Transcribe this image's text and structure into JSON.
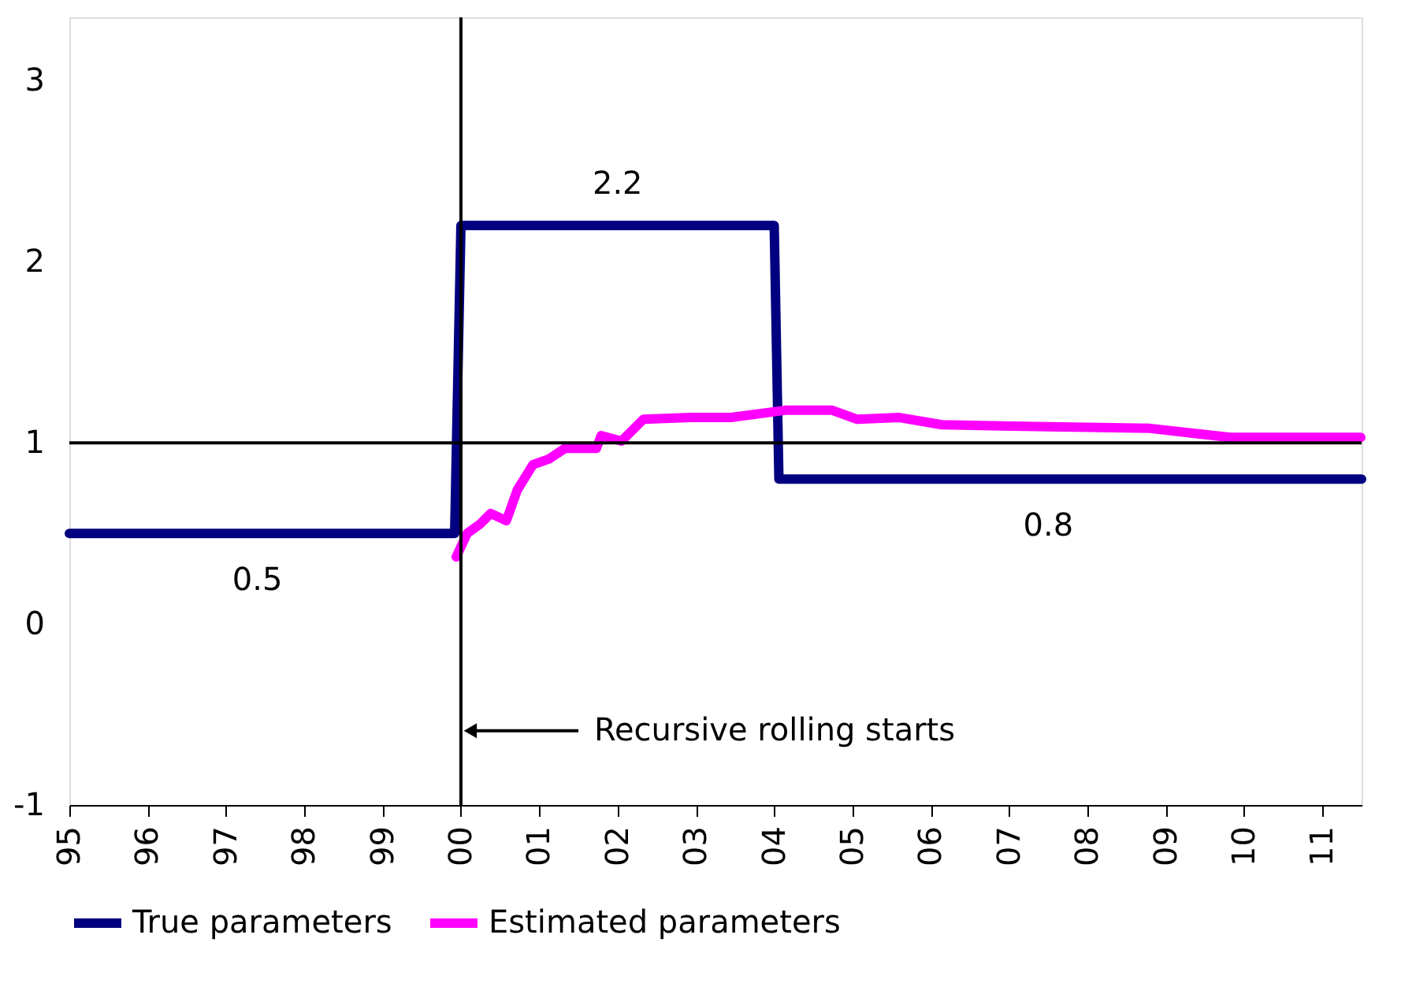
{
  "chart_data": {
    "type": "line",
    "series": [
      {
        "name": "True parameters",
        "color": "#000080",
        "x": [
          1995,
          1999.92,
          2000.0,
          2004.0,
          2004.06,
          2011.5
        ],
        "values": [
          0.5,
          0.5,
          2.2,
          2.2,
          0.8,
          0.8
        ]
      },
      {
        "name": "Estimated parameters",
        "color": "#ff00ff",
        "x": [
          1999.94,
          2000.08,
          2000.24,
          2000.38,
          2000.58,
          2000.72,
          2000.92,
          2001.12,
          2001.33,
          2001.73,
          2001.79,
          2002.05,
          2002.33,
          2002.93,
          2003.45,
          2004.14,
          2004.74,
          2005.06,
          2005.6,
          2006.14,
          2007.35,
          2008.8,
          2009.82,
          2011.49
        ],
        "values": [
          0.37,
          0.5,
          0.55,
          0.61,
          0.57,
          0.74,
          0.88,
          0.91,
          0.97,
          0.97,
          1.04,
          1.01,
          1.13,
          1.14,
          1.14,
          1.18,
          1.18,
          1.13,
          1.14,
          1.1,
          1.09,
          1.08,
          1.03,
          1.03
        ]
      }
    ],
    "xlim": [
      1995,
      2011.5
    ],
    "xticks": [
      {
        "value": 1995,
        "label": "95"
      },
      {
        "value": 1996,
        "label": "96"
      },
      {
        "value": 1997,
        "label": "97"
      },
      {
        "value": 1998,
        "label": "98"
      },
      {
        "value": 1999,
        "label": "99"
      },
      {
        "value": 2000,
        "label": "00"
      },
      {
        "value": 2001,
        "label": "01"
      },
      {
        "value": 2002,
        "label": "02"
      },
      {
        "value": 2003,
        "label": "03"
      },
      {
        "value": 2004,
        "label": "04"
      },
      {
        "value": 2005,
        "label": "05"
      },
      {
        "value": 2006,
        "label": "06"
      },
      {
        "value": 2007,
        "label": "07"
      },
      {
        "value": 2008,
        "label": "08"
      },
      {
        "value": 2009,
        "label": "09"
      },
      {
        "value": 2010,
        "label": "10"
      },
      {
        "value": 2011,
        "label": "11"
      }
    ],
    "ylim": [
      -1,
      3.35
    ],
    "yticks": [
      -1,
      0,
      1,
      2,
      3
    ],
    "ref_lines": [
      {
        "axis": "y",
        "value": 1,
        "color": "#000000"
      },
      {
        "axis": "x",
        "value": 2000,
        "color": "#000000"
      }
    ],
    "annotations": [
      {
        "text": "2.2",
        "x": 2002,
        "y": 2.2
      },
      {
        "text": "0.5",
        "x": 1997.4,
        "y": 0.5
      },
      {
        "text": "0.8",
        "x": 2007.5,
        "y": 0.8
      },
      {
        "text": "Recursive rolling starts",
        "x": 2000,
        "y": -0.59
      }
    ],
    "legend": "bottom",
    "grid": false,
    "line_style": "solid",
    "marker": "none"
  }
}
